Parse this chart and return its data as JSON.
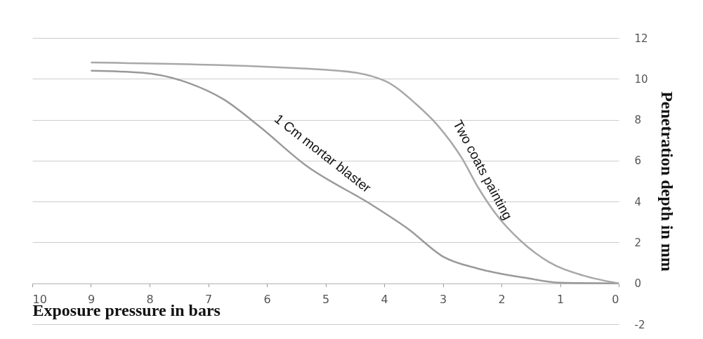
{
  "chart_data": {
    "type": "line",
    "xlabel": "Exposure pressure in bars",
    "ylabel": "Penetration depth in mm",
    "xlim": [
      10,
      0
    ],
    "xticks": [
      10,
      9,
      8,
      7,
      6,
      5,
      4,
      3,
      2,
      1,
      0
    ],
    "ylim": [
      -2,
      12
    ],
    "yticks": [
      -2,
      0,
      2,
      4,
      6,
      8,
      10,
      12
    ],
    "grid": "y",
    "series": [
      {
        "name": "1 Cm mortar blaster",
        "color": "#9a9a9a",
        "x": [
          9,
          8.14,
          7.34,
          6.74,
          6.14,
          5.35,
          4.19,
          3.59,
          2.99,
          2.4,
          1.59,
          1,
          0
        ],
        "values": [
          10.4,
          10.3,
          9.8,
          9.0,
          7.7,
          5.8,
          3.8,
          2.66,
          1.3,
          0.72,
          0.27,
          0.03,
          0
        ]
      },
      {
        "name": "Two coats painting",
        "color": "#a8a8a8",
        "x": [
          9,
          4.79,
          3.99,
          3.47,
          3.08,
          2.67,
          2.4,
          2.07,
          1.68,
          1.2,
          0.6,
          0
        ],
        "values": [
          10.8,
          10.4,
          9.9,
          8.8,
          7.7,
          6.1,
          4.7,
          3.3,
          2.1,
          1.06,
          0.38,
          0
        ]
      }
    ]
  }
}
